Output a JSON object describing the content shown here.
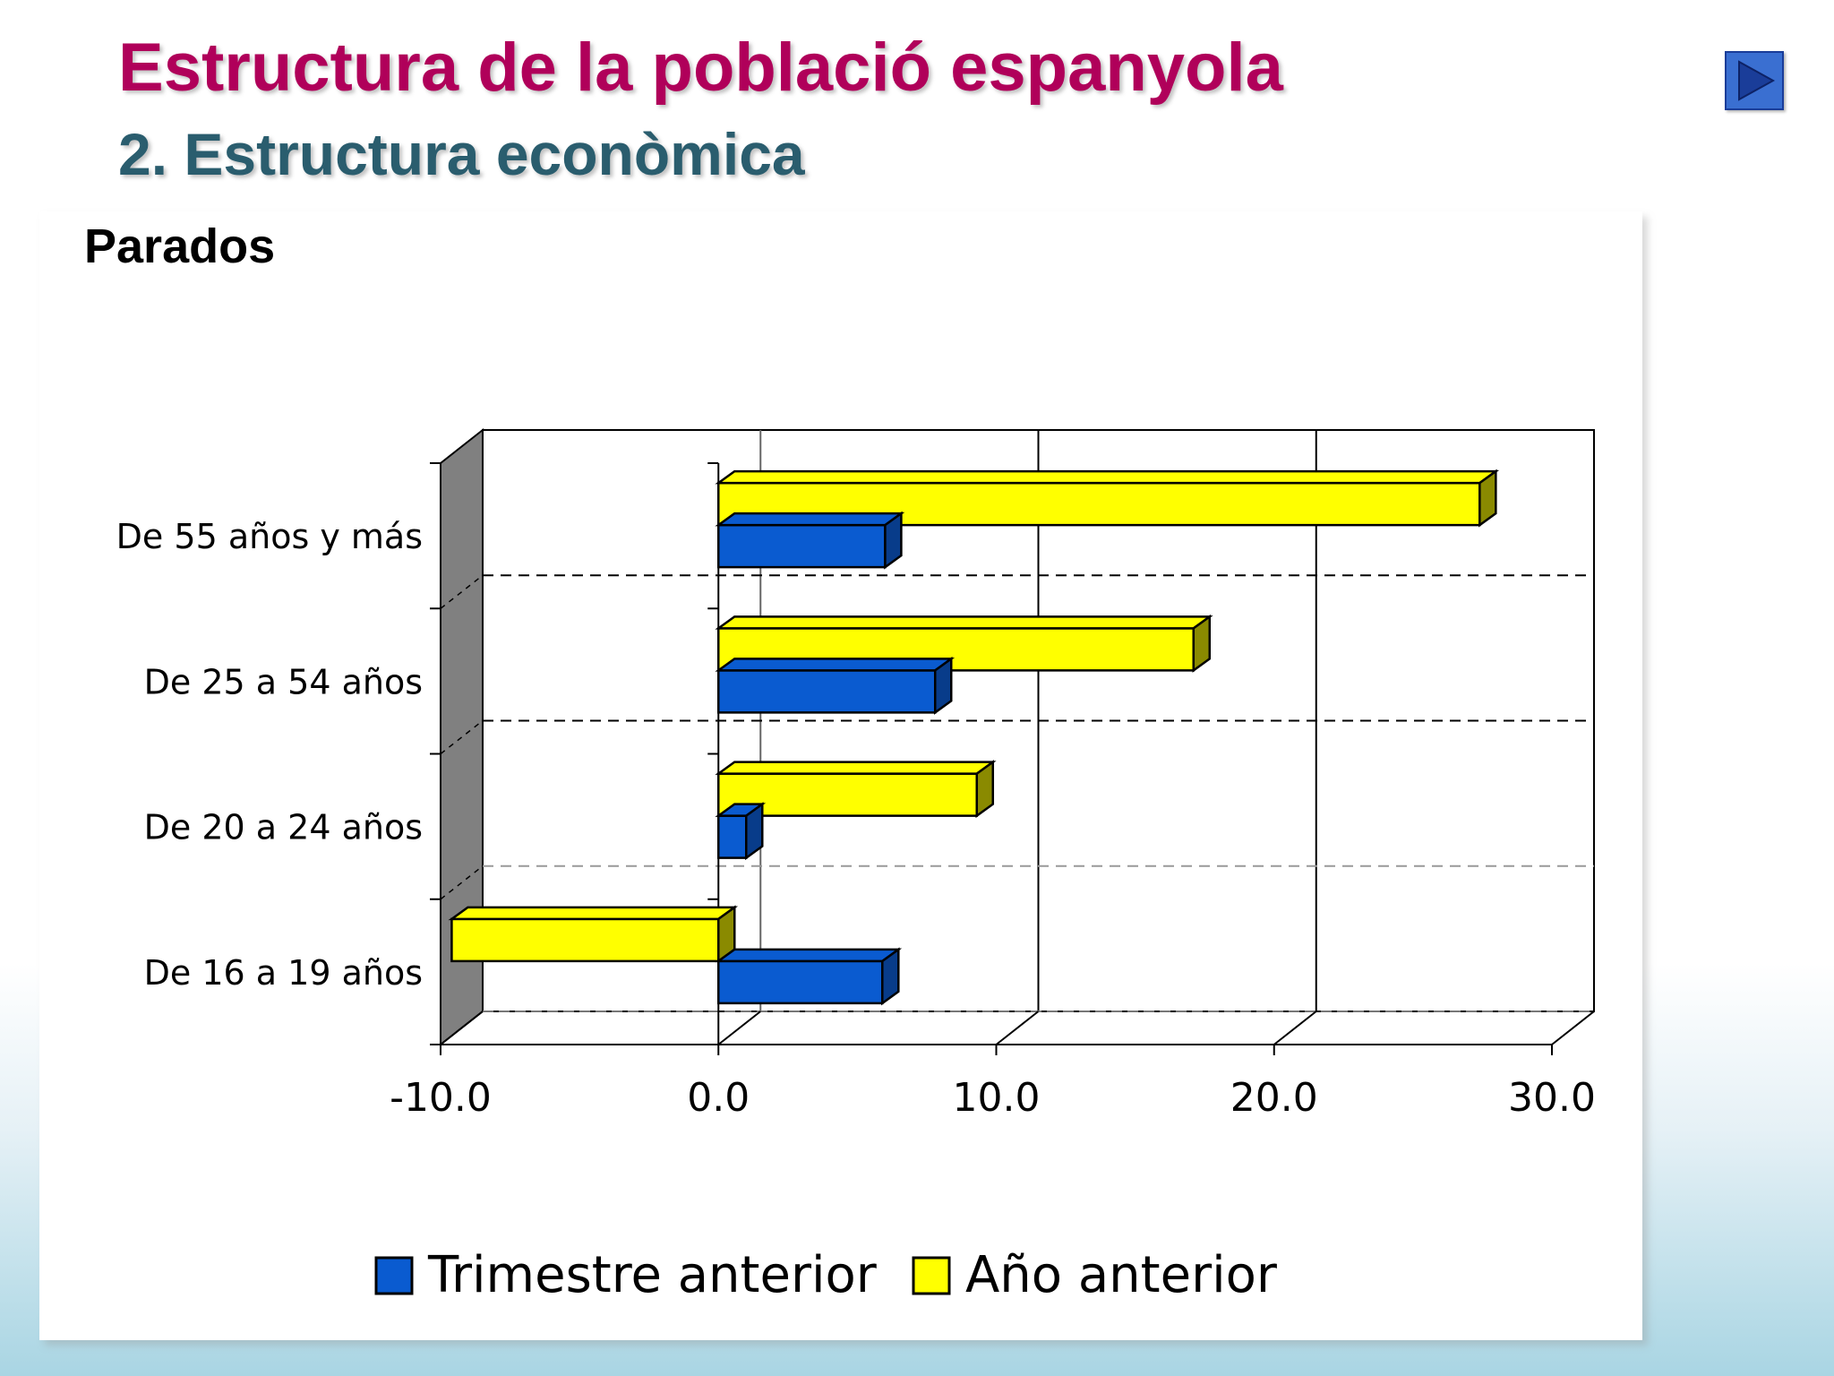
{
  "slide": {
    "title": "Estructura de la població espanyola",
    "subtitle": "2. Estructura econòmica",
    "next_button_icon": "play-arrow-icon"
  },
  "colors": {
    "title": "#b0005a",
    "subtitle": "#2a5d6e",
    "series_trimestre": "#0a5bd0",
    "series_ano": "#ffff00"
  },
  "chart_data": {
    "type": "bar",
    "orientation": "horizontal",
    "title": "Parados",
    "categories": [
      "De 55 años y más",
      "De 25 a 54 años",
      "De 20 a 24 años",
      "De 16 a 19 años"
    ],
    "series": [
      {
        "name": "Trimestre anterior",
        "values": [
          6.0,
          7.8,
          1.0,
          5.9
        ]
      },
      {
        "name": "Año anterior",
        "values": [
          27.4,
          17.1,
          9.3,
          -9.6
        ]
      }
    ],
    "xlim": [
      -10,
      30
    ],
    "xticks": [
      "-10.0",
      "0.0",
      "10.0",
      "20.0",
      "30.0"
    ],
    "xtick_values": [
      -10,
      0,
      10,
      20,
      30
    ],
    "legend_position": "bottom",
    "grid": true
  }
}
